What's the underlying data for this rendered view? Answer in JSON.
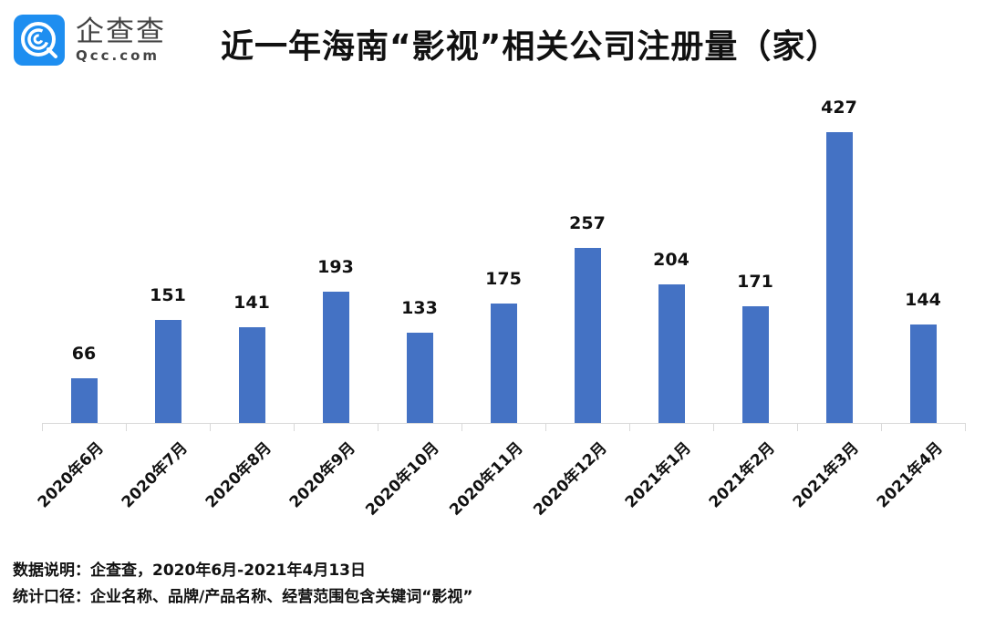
{
  "brand": {
    "name_cn": "企查查",
    "domain": "Qcc.com",
    "logo_color": "#1e8ef0",
    "logo_icon": "qcc-logo-icon"
  },
  "header": {
    "title": "近一年海南“影视”相关公司注册量（家）"
  },
  "footer": {
    "source": "数据说明：企查查，2020年6月-2021年4月13日",
    "scope": "统计口径：企业名称、品牌/产品名称、经营范围包含关键词“影视”"
  },
  "chart_data": {
    "type": "bar",
    "title": "近一年海南“影视”相关公司注册量（家）",
    "xlabel": "",
    "ylabel": "",
    "categories": [
      "2020年6月",
      "2020年7月",
      "2020年8月",
      "2020年9月",
      "2020年10月",
      "2020年11月",
      "2020年12月",
      "2021年1月",
      "2021年2月",
      "2021年3月",
      "2021年4月"
    ],
    "values": [
      66,
      151,
      141,
      193,
      133,
      175,
      257,
      204,
      171,
      427,
      144
    ],
    "series": [
      {
        "name": "注册量（家）",
        "color": "#4472c4",
        "values": [
          66,
          151,
          141,
          193,
          133,
          175,
          257,
          204,
          171,
          427,
          144
        ]
      }
    ],
    "ylim": [
      0,
      427
    ],
    "grid": false,
    "legend": "none",
    "data_labels": true
  }
}
